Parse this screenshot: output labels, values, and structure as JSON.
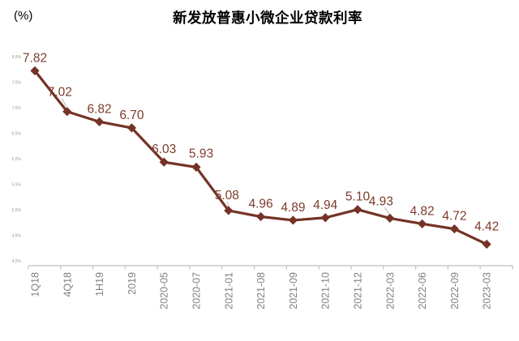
{
  "chart_data": {
    "type": "line",
    "title": "新发放普惠小微企业贷款利率",
    "unit": "(%)",
    "categories": [
      "1Q18",
      "4Q18",
      "1H19",
      "2019",
      "2020-05",
      "2020-07",
      "2021-01",
      "2021-08",
      "2021-09",
      "2021-10",
      "2021-12",
      "2022-03",
      "2022-06",
      "2022-09",
      "2023-03"
    ],
    "values": [
      7.82,
      7.02,
      6.82,
      6.7,
      6.03,
      5.93,
      5.08,
      4.96,
      4.89,
      4.94,
      5.1,
      4.93,
      4.82,
      4.72,
      4.42
    ],
    "data_labels": [
      "7.82",
      "7.02",
      "6.82",
      "6.70",
      "6.03",
      "5.93",
      "5.08",
      "4.96",
      "4.89",
      "4.94",
      "5.10",
      "4.93",
      "4.82",
      "4.72",
      "4.42"
    ],
    "ylim": [
      4.0,
      8.0
    ],
    "ytick_step": 0.5,
    "ytick_labels": [
      "8.0%",
      "7.5%",
      "7.0%",
      "6.5%",
      "6.0%",
      "5.5%",
      "5.0%",
      "4.5%",
      "4.0%"
    ],
    "grid": false,
    "legend": "none",
    "marker": "diamond",
    "colors": {
      "line": "#753326",
      "marker": "#753326",
      "data_label": "#7d3b2b",
      "axis": "#bfbfbf",
      "leader": "#b3b3b3",
      "xtick_label": "#7f7f7f",
      "ytick_label": "#999999",
      "title": "#000000",
      "background": "#ffffff"
    }
  }
}
